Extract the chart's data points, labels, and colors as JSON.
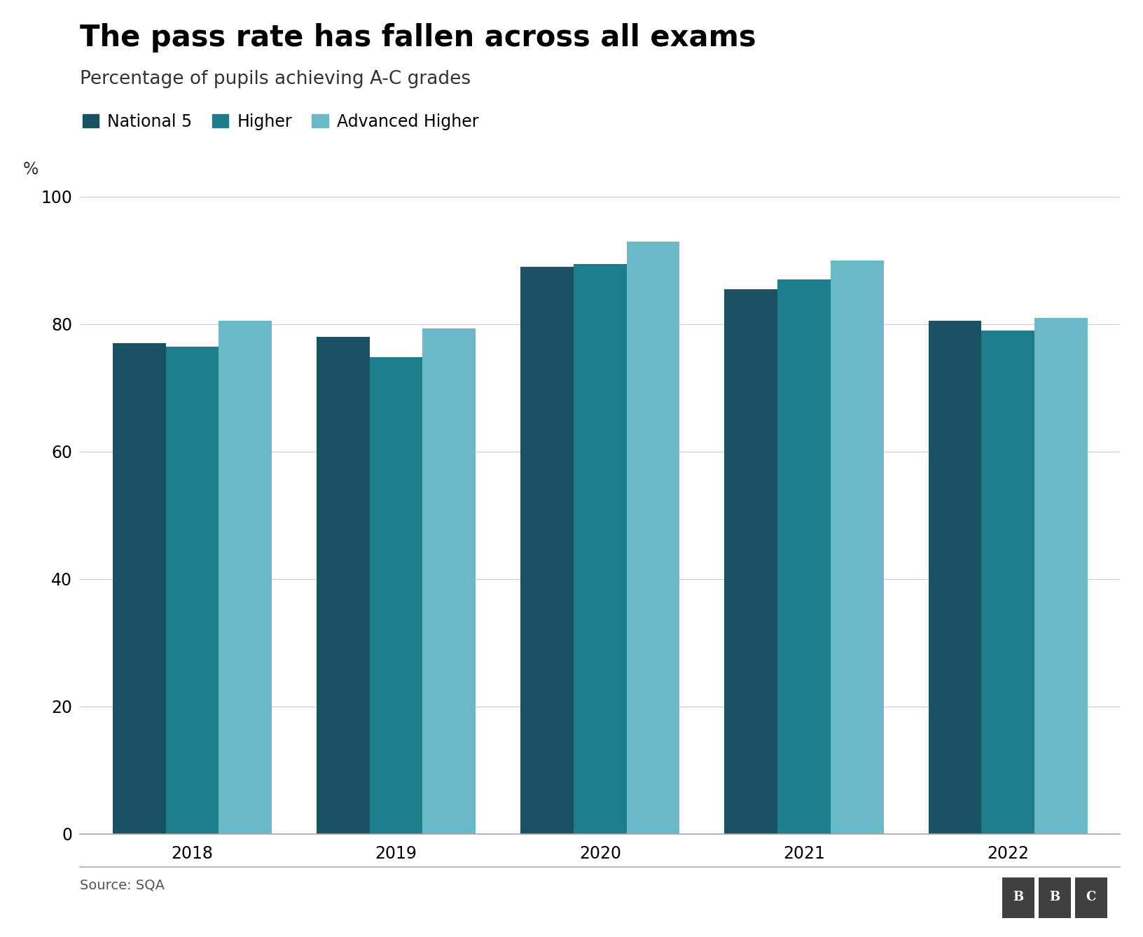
{
  "title": "The pass rate has fallen across all exams",
  "subtitle": "Percentage of pupils achieving A-C grades",
  "ylabel": "%",
  "source": "Source: SQA",
  "years": [
    2018,
    2019,
    2020,
    2021,
    2022
  ],
  "series": {
    "National 5": [
      77.0,
      78.0,
      89.0,
      85.5,
      80.5
    ],
    "Higher": [
      76.5,
      74.8,
      89.5,
      87.0,
      79.0
    ],
    "Advanced Higher": [
      80.5,
      79.3,
      93.0,
      90.0,
      81.0
    ]
  },
  "colors": {
    "National 5": "#1a5263",
    "Higher": "#1e7d8a",
    "Advanced Higher": "#6ab8c8"
  },
  "ylim": [
    0,
    100
  ],
  "yticks": [
    0,
    20,
    40,
    60,
    80,
    100
  ],
  "bar_width": 0.26,
  "background_color": "#ffffff",
  "grid_color": "#cccccc",
  "title_fontsize": 30,
  "subtitle_fontsize": 19,
  "tick_fontsize": 17,
  "legend_fontsize": 17,
  "source_fontsize": 14
}
